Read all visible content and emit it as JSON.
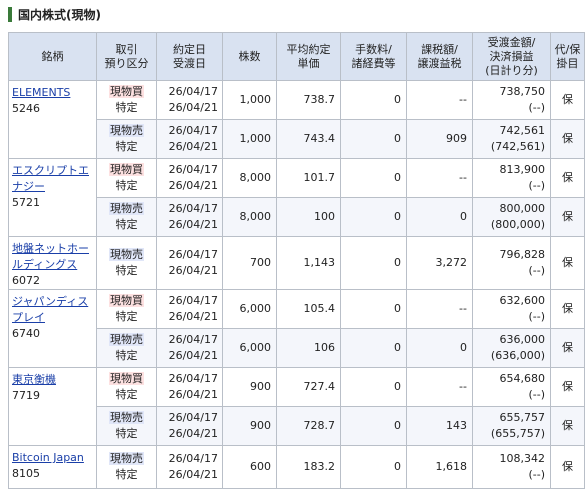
{
  "section_title": "国内株式(現物)",
  "headers": {
    "name": "銘柄",
    "type1": "取引",
    "type2": "預り区分",
    "date1": "約定日",
    "date2": "受渡日",
    "qty": "株数",
    "price1": "平均約定",
    "price2": "単価",
    "fee1": "手数料/",
    "fee2": "諸経費等",
    "tax1": "課税額/",
    "tax2": "譲渡益税",
    "amt1": "受渡金額/",
    "amt2": "決済損益",
    "amt3": "(日計り分)",
    "rep1": "代/保",
    "rep2": "掛目"
  },
  "stocks": [
    {
      "name": "ELEMENTS",
      "code": "5246",
      "rows": [
        {
          "trade": "現物買",
          "kind": "特定",
          "d1": "26/04/17",
          "d2": "26/04/21",
          "qty": "1,000",
          "price": "738.7",
          "fee": "0",
          "tax": "--",
          "amt": "738,750",
          "pl": "(--)",
          "rep": "保"
        },
        {
          "trade": "現物売",
          "kind": "特定",
          "d1": "26/04/17",
          "d2": "26/04/21",
          "qty": "1,000",
          "price": "743.4",
          "fee": "0",
          "tax": "909",
          "amt": "742,561",
          "pl": "(742,561)",
          "rep": "保"
        }
      ]
    },
    {
      "name": "エスクリプトエナジー",
      "code": "5721",
      "rows": [
        {
          "trade": "現物買",
          "kind": "特定",
          "d1": "26/04/17",
          "d2": "26/04/21",
          "qty": "8,000",
          "price": "101.7",
          "fee": "0",
          "tax": "--",
          "amt": "813,900",
          "pl": "(--)",
          "rep": "保"
        },
        {
          "trade": "現物売",
          "kind": "特定",
          "d1": "26/04/17",
          "d2": "26/04/21",
          "qty": "8,000",
          "price": "100",
          "fee": "0",
          "tax": "0",
          "amt": "800,000",
          "pl": "(800,000)",
          "rep": "保"
        }
      ]
    },
    {
      "name": "地盤ネットホールディングス",
      "code": "6072",
      "rows": [
        {
          "trade": "現物売",
          "kind": "特定",
          "d1": "26/04/17",
          "d2": "26/04/21",
          "qty": "700",
          "price": "1,143",
          "fee": "0",
          "tax": "3,272",
          "amt": "796,828",
          "pl": "(--)",
          "rep": "保"
        }
      ]
    },
    {
      "name": "ジャパンディスプレイ",
      "code": "6740",
      "rows": [
        {
          "trade": "現物買",
          "kind": "特定",
          "d1": "26/04/17",
          "d2": "26/04/21",
          "qty": "6,000",
          "price": "105.4",
          "fee": "0",
          "tax": "--",
          "amt": "632,600",
          "pl": "(--)",
          "rep": "保"
        },
        {
          "trade": "現物売",
          "kind": "特定",
          "d1": "26/04/17",
          "d2": "26/04/21",
          "qty": "6,000",
          "price": "106",
          "fee": "0",
          "tax": "0",
          "amt": "636,000",
          "pl": "(636,000)",
          "rep": "保"
        }
      ]
    },
    {
      "name": "東京衡機",
      "code": "7719",
      "rows": [
        {
          "trade": "現物買",
          "kind": "特定",
          "d1": "26/04/17",
          "d2": "26/04/21",
          "qty": "900",
          "price": "727.4",
          "fee": "0",
          "tax": "--",
          "amt": "654,680",
          "pl": "(--)",
          "rep": "保"
        },
        {
          "trade": "現物売",
          "kind": "特定",
          "d1": "26/04/17",
          "d2": "26/04/21",
          "qty": "900",
          "price": "728.7",
          "fee": "0",
          "tax": "143",
          "amt": "655,757",
          "pl": "(655,757)",
          "rep": "保"
        }
      ]
    },
    {
      "name": "Bitcoin Japan",
      "code": "8105",
      "rows": [
        {
          "trade": "現物売",
          "kind": "特定",
          "d1": "26/04/17",
          "d2": "26/04/21",
          "qty": "600",
          "price": "183.2",
          "fee": "0",
          "tax": "1,618",
          "amt": "108,342",
          "pl": "(--)",
          "rep": "保"
        }
      ]
    }
  ]
}
